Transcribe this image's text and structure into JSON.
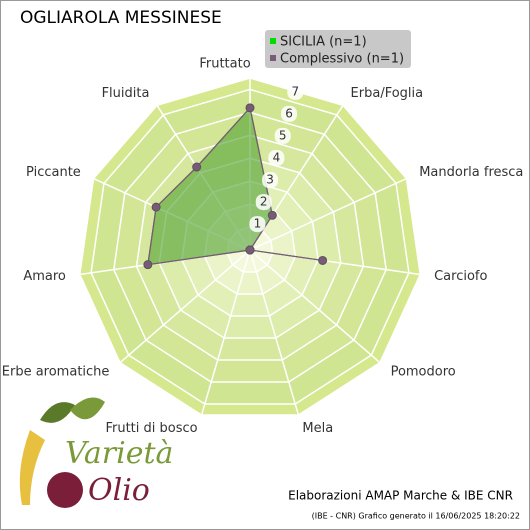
{
  "chart_data": {
    "type": "radar",
    "title": "OGLIAROLA MESSINESE",
    "categories": [
      "Fruttato",
      "Erba/Foglia",
      "Mandorla fresca",
      "Carciofo",
      "Pomodoro",
      "Mela",
      "Frutti di bosco",
      "Erbe aromatiche",
      "Amaro",
      "Piccante",
      "Fluidita"
    ],
    "series": [
      {
        "name": "SICILIA  (n=1)",
        "color": "#00dd00",
        "values": [
          6.2,
          1.8,
          0,
          3.2,
          0,
          0,
          0,
          0,
          4.5,
          4.5,
          4.3
        ]
      },
      {
        "name": "Complessivo (n=1)",
        "color": "#7a5a78",
        "values": [
          6.2,
          1.8,
          0,
          3.2,
          0,
          0,
          0,
          0,
          4.5,
          4.5,
          4.3
        ]
      }
    ],
    "ylim": [
      0,
      7.5
    ],
    "yticks": [
      1,
      2,
      3,
      4,
      5,
      6,
      7
    ],
    "legend": "top-right"
  },
  "logo": {
    "line1": "Varietà",
    "line2": "Olio"
  },
  "footer": {
    "credit": "Elaborazioni AMAP Marche & IBE CNR",
    "generated": "(IBE - CNR) Grafico generato il 16/06/2025 18:20:22"
  }
}
